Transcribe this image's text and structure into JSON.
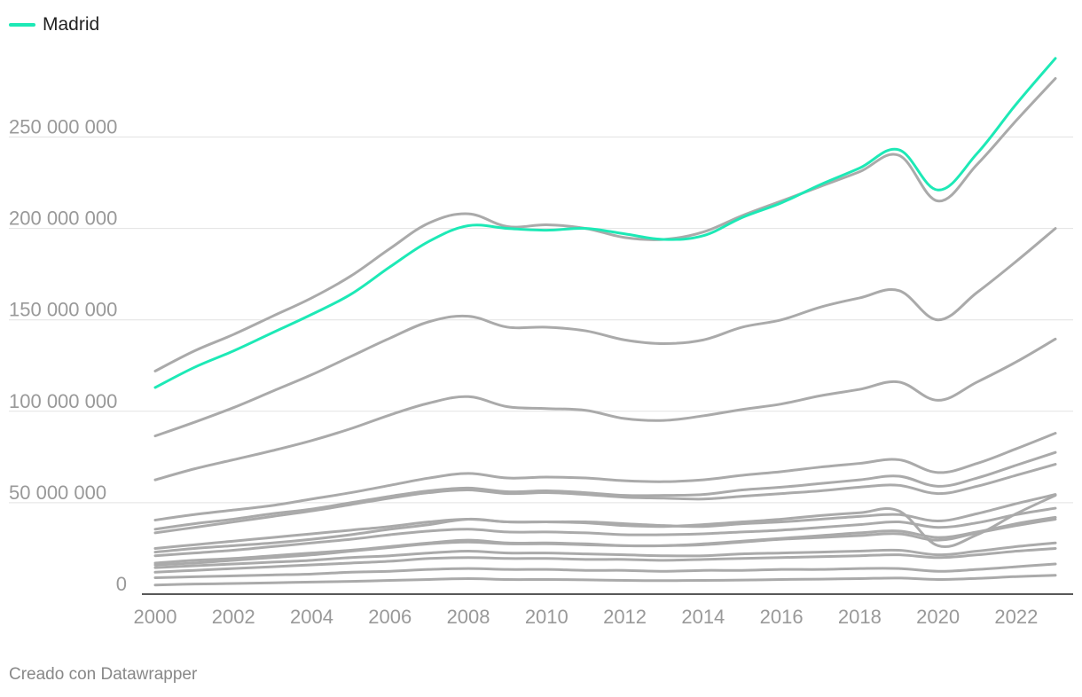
{
  "legend": {
    "label": "Madrid",
    "color": "#1de9b6"
  },
  "footer": "Creado con Datawrapper",
  "colors": {
    "highlight": "#1de9b6",
    "other": "#aaaaaa",
    "grid": "#e2e2e2",
    "axis": "#222222",
    "tick_text": "#999999"
  },
  "chart_data": {
    "type": "line",
    "title": "",
    "xlabel": "",
    "ylabel": "",
    "grid": true,
    "legend_position": "top-left",
    "xlim": [
      2000,
      2023
    ],
    "ylim": [
      0,
      290000000
    ],
    "x_ticks": [
      2000,
      2002,
      2004,
      2006,
      2008,
      2010,
      2012,
      2014,
      2016,
      2018,
      2020,
      2022
    ],
    "x_tick_labels": [
      "2000",
      "2002",
      "2004",
      "2006",
      "2008",
      "2010",
      "2012",
      "2014",
      "2016",
      "2018",
      "2020",
      "2022"
    ],
    "y_ticks": [
      0,
      50000000,
      100000000,
      150000000,
      200000000,
      250000000
    ],
    "y_tick_labels": [
      "0",
      "50 000 000",
      "100 000 000",
      "150 000 000",
      "200 000 000",
      "250 000 000"
    ],
    "x": [
      2000,
      2001,
      2002,
      2003,
      2004,
      2005,
      2006,
      2007,
      2008,
      2009,
      2010,
      2011,
      2012,
      2013,
      2014,
      2015,
      2016,
      2017,
      2018,
      2019,
      2020,
      2021,
      2022,
      2023
    ],
    "series": [
      {
        "name": "Madrid",
        "highlight": true,
        "values": [
          113,
          124,
          133,
          143,
          153,
          164,
          179,
          193,
          201.5,
          200,
          199,
          200,
          197,
          194,
          196,
          206,
          214,
          224,
          233,
          243,
          221,
          241,
          268,
          293
        ]
      },
      {
        "highlight": false,
        "values": [
          122,
          133,
          142,
          152,
          162,
          174,
          189,
          203,
          208,
          201,
          202,
          200,
          195,
          194,
          198,
          207,
          215,
          223,
          231,
          240,
          215,
          235,
          259,
          282
        ]
      },
      {
        "highlight": false,
        "values": [
          86.5,
          94,
          102,
          111,
          120,
          130,
          140,
          149,
          152,
          146,
          146,
          144,
          139,
          137,
          139,
          146,
          150,
          157,
          162,
          166,
          150,
          165,
          182,
          200
        ]
      },
      {
        "highlight": false,
        "values": [
          62.5,
          68.5,
          73.5,
          78.5,
          84,
          90.5,
          98,
          104.5,
          108,
          102.5,
          101.5,
          100.5,
          96,
          95,
          97.5,
          101,
          104,
          108.5,
          112,
          116,
          106,
          116,
          127,
          139.5
        ]
      },
      {
        "highlight": false,
        "values": [
          40.5,
          43.5,
          46,
          48.5,
          52,
          55.5,
          59.5,
          63.5,
          66,
          63.5,
          64,
          63.5,
          62,
          61.5,
          62.5,
          65,
          67,
          69.5,
          71.5,
          73.5,
          66.5,
          71.5,
          79.5,
          88
        ]
      },
      {
        "highlight": false,
        "values": [
          35.5,
          38.5,
          41,
          44,
          46.5,
          50,
          53.5,
          56.5,
          58,
          56,
          56.5,
          55.5,
          54,
          54,
          54.5,
          57,
          58.5,
          60.5,
          62.5,
          64.5,
          59,
          63.5,
          70.5,
          77.5
        ]
      },
      {
        "highlight": false,
        "values": [
          33.5,
          36.5,
          39.5,
          42.5,
          45.5,
          49,
          52.5,
          55.5,
          57,
          55,
          55.5,
          54.5,
          53,
          52.5,
          52,
          53.5,
          55,
          56.5,
          58.5,
          59.5,
          55,
          59,
          65,
          71
        ]
      },
      {
        "highlight": false,
        "values": [
          25,
          27,
          29,
          31,
          33,
          35,
          37,
          39.5,
          41,
          39.5,
          39.5,
          39.5,
          38.5,
          37.5,
          37,
          38.5,
          39.5,
          41,
          42.5,
          43.5,
          40,
          44,
          49.5,
          54.5
        ]
      },
      {
        "highlight": false,
        "values": [
          23,
          25,
          26.5,
          28,
          30,
          32.5,
          35.5,
          38,
          41,
          39.5,
          39.5,
          39,
          37.5,
          37,
          38,
          39.5,
          41,
          43,
          44.5,
          45.5,
          26.5,
          32.5,
          44,
          54
        ]
      },
      {
        "highlight": false,
        "values": [
          21,
          22.5,
          24,
          26,
          28,
          30,
          32.5,
          34.5,
          35.5,
          34,
          34,
          33.5,
          32.5,
          32.5,
          33,
          34,
          35,
          36.5,
          38,
          39.5,
          36.5,
          39,
          43.5,
          47
        ]
      },
      {
        "highlight": false,
        "values": [
          17,
          18.5,
          19.5,
          21,
          22.5,
          24,
          26,
          28,
          29.5,
          28,
          28,
          27.5,
          26.5,
          26.5,
          27.5,
          29,
          30.5,
          32,
          33.5,
          34.5,
          31,
          34,
          38.5,
          42
        ]
      },
      {
        "highlight": false,
        "values": [
          16,
          17,
          18.5,
          20,
          21.5,
          23.5,
          25.5,
          27.5,
          28.5,
          27.5,
          27.5,
          27,
          26.5,
          26.5,
          27,
          28.5,
          30,
          31,
          32,
          33,
          29.5,
          33.5,
          37.5,
          41
        ]
      },
      {
        "highlight": false,
        "values": [
          14.5,
          15.5,
          16.5,
          17.5,
          18.5,
          20,
          21,
          22.5,
          23.5,
          22.5,
          22.5,
          22,
          21.5,
          21,
          21,
          22,
          22.5,
          23,
          23.5,
          24,
          21.5,
          23.5,
          26,
          28
        ]
      },
      {
        "highlight": false,
        "values": [
          12,
          13,
          14,
          15,
          16,
          17,
          18,
          19.5,
          20,
          19.5,
          19.5,
          19,
          19,
          18.5,
          19,
          19.5,
          20,
          20.5,
          21,
          21.5,
          20,
          21.5,
          23.5,
          25
        ]
      },
      {
        "highlight": false,
        "values": [
          9,
          9.5,
          10,
          10.5,
          11,
          12,
          12.5,
          13.5,
          14,
          13.5,
          13.5,
          13,
          13,
          12.5,
          13,
          13,
          13.5,
          13.5,
          14,
          14,
          12.5,
          13.5,
          15,
          16.5
        ]
      },
      {
        "highlight": false,
        "values": [
          5,
          5.5,
          5.8,
          6.2,
          6.6,
          7,
          7.5,
          8,
          8.5,
          8,
          8,
          7.8,
          7.5,
          7.4,
          7.5,
          7.7,
          8,
          8.2,
          8.5,
          8.8,
          8,
          8.6,
          9.6,
          10.3
        ]
      }
    ]
  }
}
